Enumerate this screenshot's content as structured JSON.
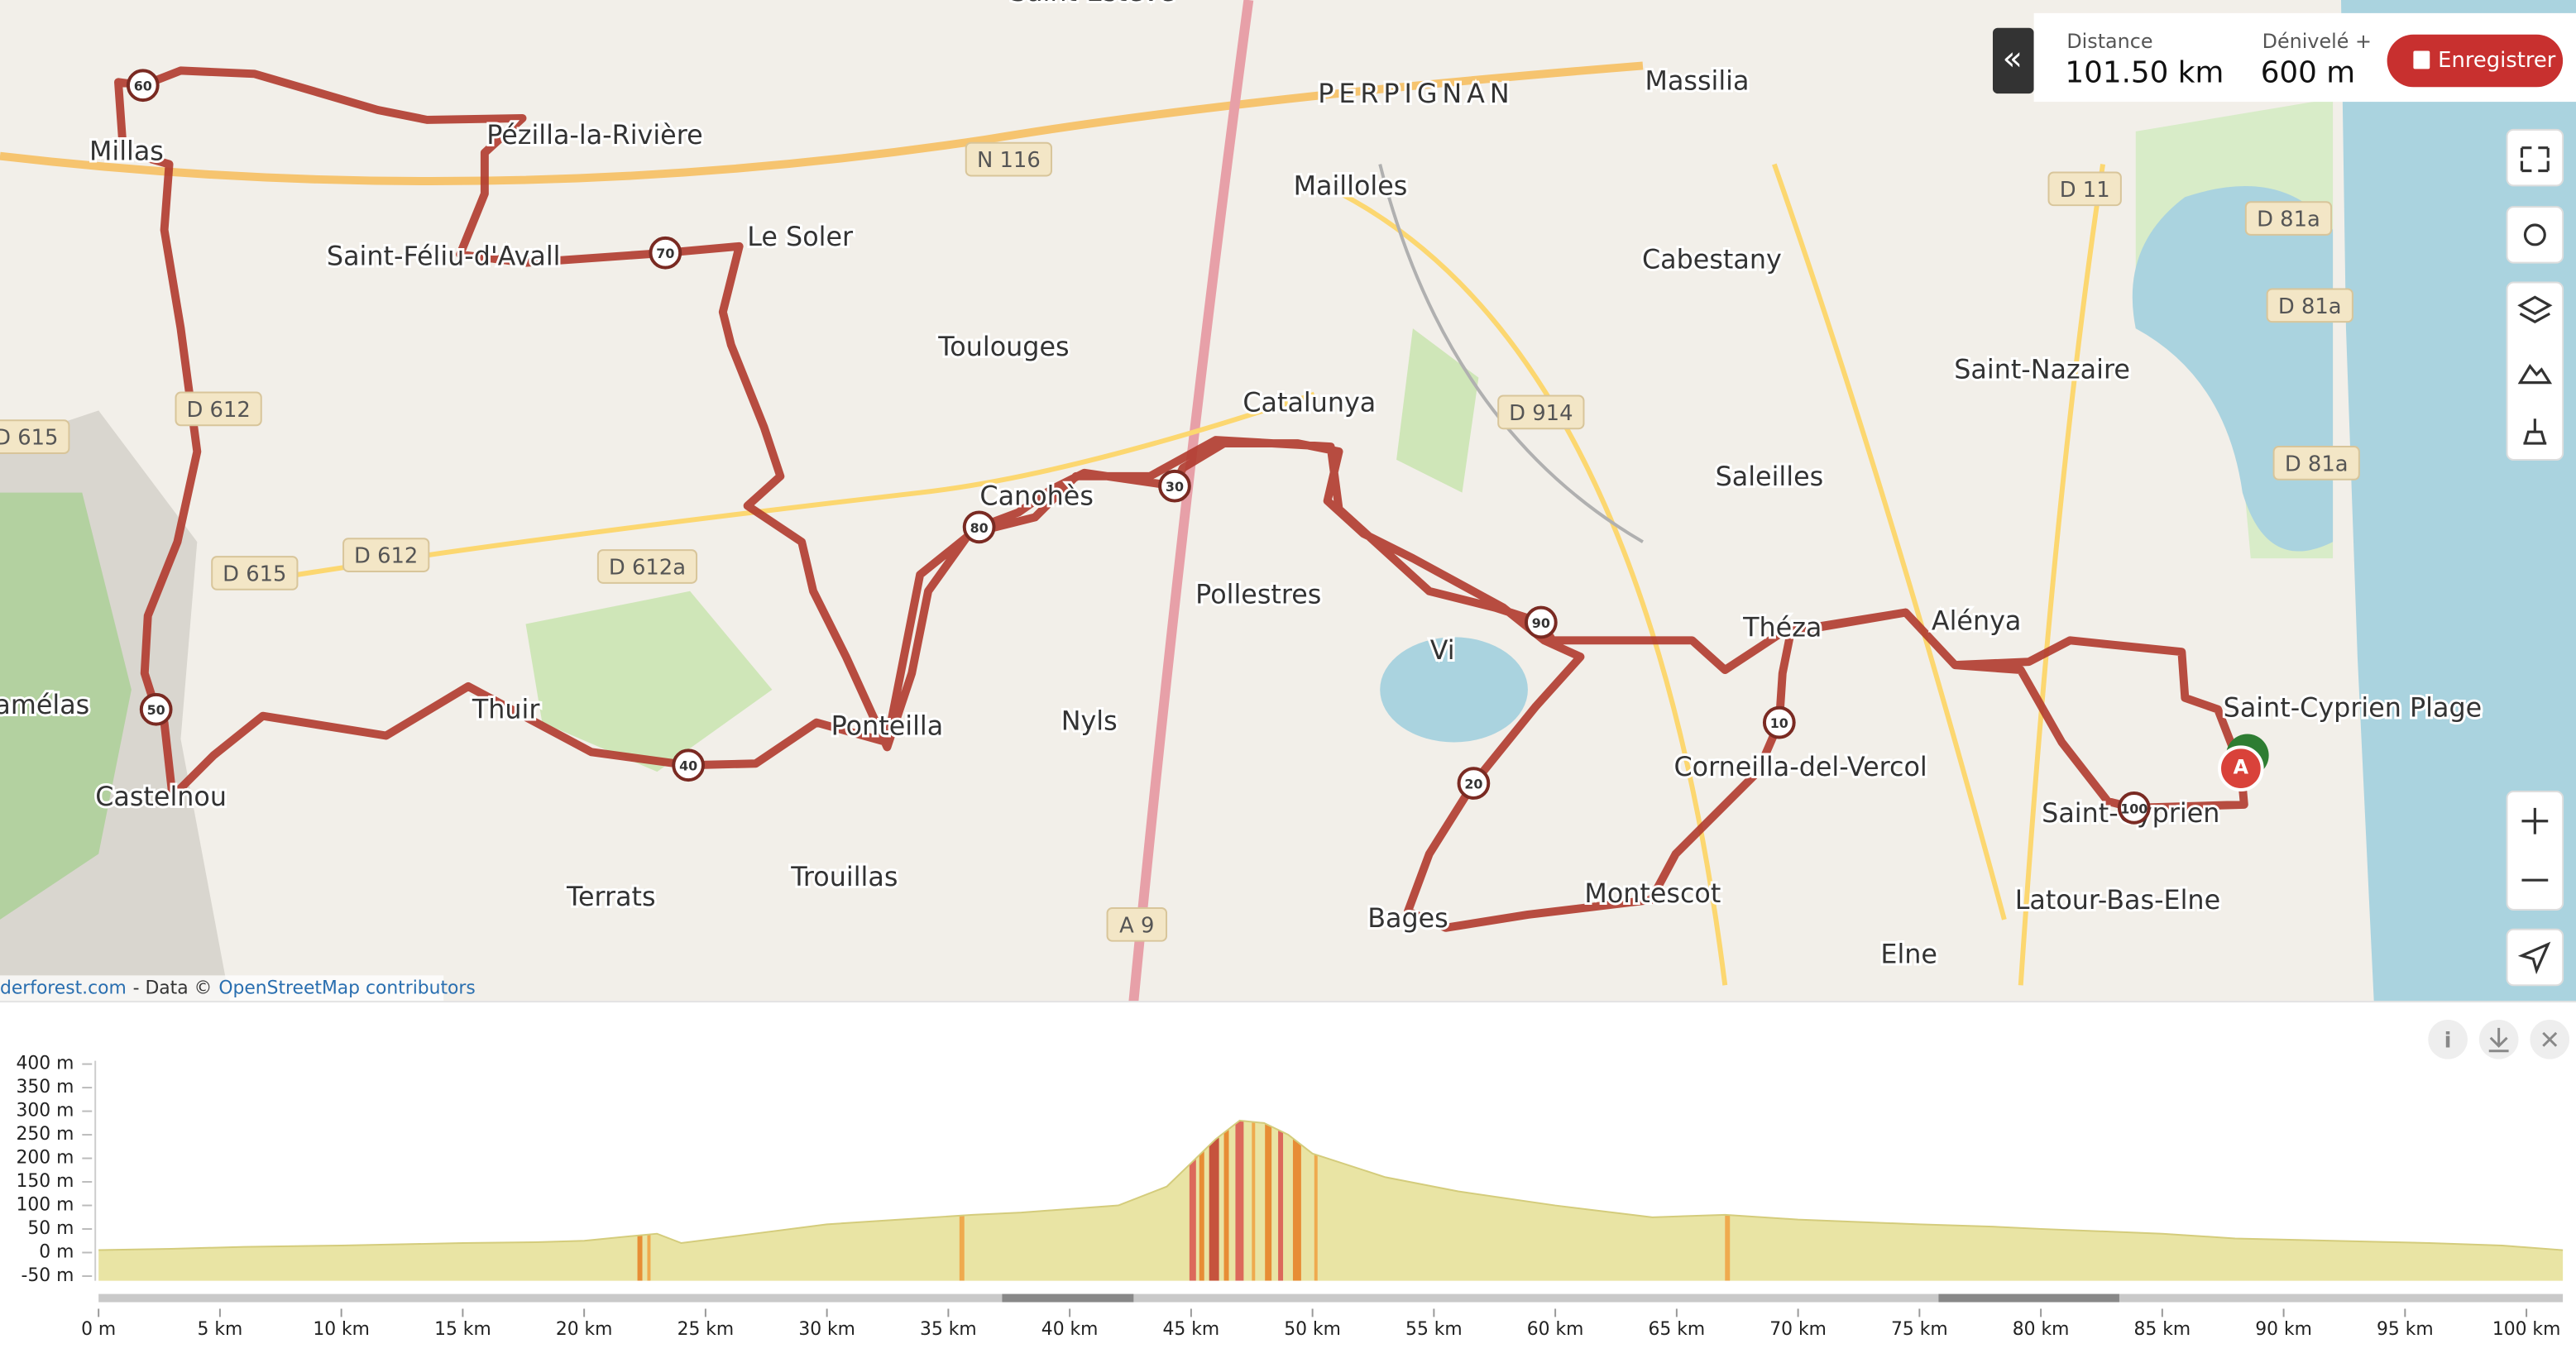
{
  "header": {
    "distance_label": "Distance",
    "distance": "101.50 km",
    "elevation_label": "Dénivelé +",
    "elevation": "600 m",
    "record_button": "Enregistrer",
    "collapse_button": "«"
  },
  "map": {
    "places": [
      "Saint-Estève",
      "PERPIGNAN",
      "Massilia",
      "Mailloles",
      "Cabestany",
      "Millas",
      "Pézilla-la-Rivière",
      "Saint-Féliu-d'Avall",
      "Le Soler",
      "Toulouges",
      "Catalunya",
      "Saint-Nazaire",
      "Saleilles",
      "Canohès",
      "Pollestres",
      "Vi",
      "Théza",
      "Alénya",
      "Saint-Cyprien Plage",
      "Camélas",
      "Thuir",
      "Ponteilla",
      "Nyls",
      "Corneilla-del-Vercol",
      "Castelnou",
      "Saint-Cyprien",
      "Terrats",
      "Trouillas",
      "Montescot",
      "Latour-Bas-Elne",
      "Bages",
      "Elne"
    ],
    "road_labels": [
      "N 116",
      "D 11",
      "D 81a",
      "D 81a",
      "D 612",
      "D 615",
      "D 914",
      "D 81a",
      "D 615",
      "D 612",
      "D 612a",
      "A 9"
    ],
    "km_markers": [
      "60",
      "70",
      "30",
      "80",
      "90",
      "50",
      "10",
      "40",
      "20",
      "100"
    ],
    "start_marker": "A",
    "attribution": [
      "derforest.com",
      "- Data ©",
      "OpenStreetMap contributors"
    ]
  },
  "elevation_chart": {
    "type": "area",
    "x": [
      0,
      3,
      6,
      10,
      15,
      18,
      20,
      22,
      23,
      24,
      27,
      30,
      33,
      36,
      38,
      42,
      44,
      45,
      46,
      47,
      48,
      49,
      50,
      53,
      56,
      60,
      64,
      67,
      70,
      75,
      78,
      80,
      85,
      88,
      92,
      96,
      99,
      101.5
    ],
    "values": [
      5,
      8,
      12,
      15,
      20,
      22,
      25,
      35,
      40,
      20,
      40,
      60,
      70,
      80,
      85,
      100,
      140,
      190,
      240,
      280,
      275,
      250,
      210,
      160,
      130,
      100,
      75,
      80,
      70,
      60,
      55,
      50,
      40,
      30,
      25,
      20,
      15,
      5
    ],
    "color": "#e9e4a4",
    "xlim": [
      0,
      101.5
    ],
    "ylim": [
      -60,
      400
    ],
    "xticks": [
      {
        "value": 0,
        "label": "0 m"
      },
      {
        "value": 5,
        "label": "5 km"
      },
      {
        "value": 10,
        "label": "10 km"
      },
      {
        "value": 15,
        "label": "15 km"
      },
      {
        "value": 20,
        "label": "20 km"
      },
      {
        "value": 25,
        "label": "25 km"
      },
      {
        "value": 30,
        "label": "30 km"
      },
      {
        "value": 35,
        "label": "35 km"
      },
      {
        "value": 40,
        "label": "40 km"
      },
      {
        "value": 45,
        "label": "45 km"
      },
      {
        "value": 50,
        "label": "50 km"
      },
      {
        "value": 55,
        "label": "55 km"
      },
      {
        "value": 60,
        "label": "60 km"
      },
      {
        "value": 65,
        "label": "65 km"
      },
      {
        "value": 70,
        "label": "70 km"
      },
      {
        "value": 75,
        "label": "75 km"
      },
      {
        "value": 80,
        "label": "80 km"
      },
      {
        "value": 85,
        "label": "85 km"
      },
      {
        "value": 90,
        "label": "90 km"
      },
      {
        "value": 95,
        "label": "95 km"
      },
      {
        "value": 100,
        "label": "100 km"
      }
    ],
    "yticks": [
      {
        "value": 400,
        "label": "400 m"
      },
      {
        "value": 350,
        "label": "350 m"
      },
      {
        "value": 300,
        "label": "300 m"
      },
      {
        "value": 250,
        "label": "250 m"
      },
      {
        "value": 200,
        "label": "200 m"
      },
      {
        "value": 150,
        "label": "150 m"
      },
      {
        "value": 100,
        "label": "100 m"
      },
      {
        "value": 50,
        "label": "50 m"
      },
      {
        "value": 0,
        "label": "0 m"
      },
      {
        "value": -50,
        "label": "-50 m"
      }
    ]
  }
}
